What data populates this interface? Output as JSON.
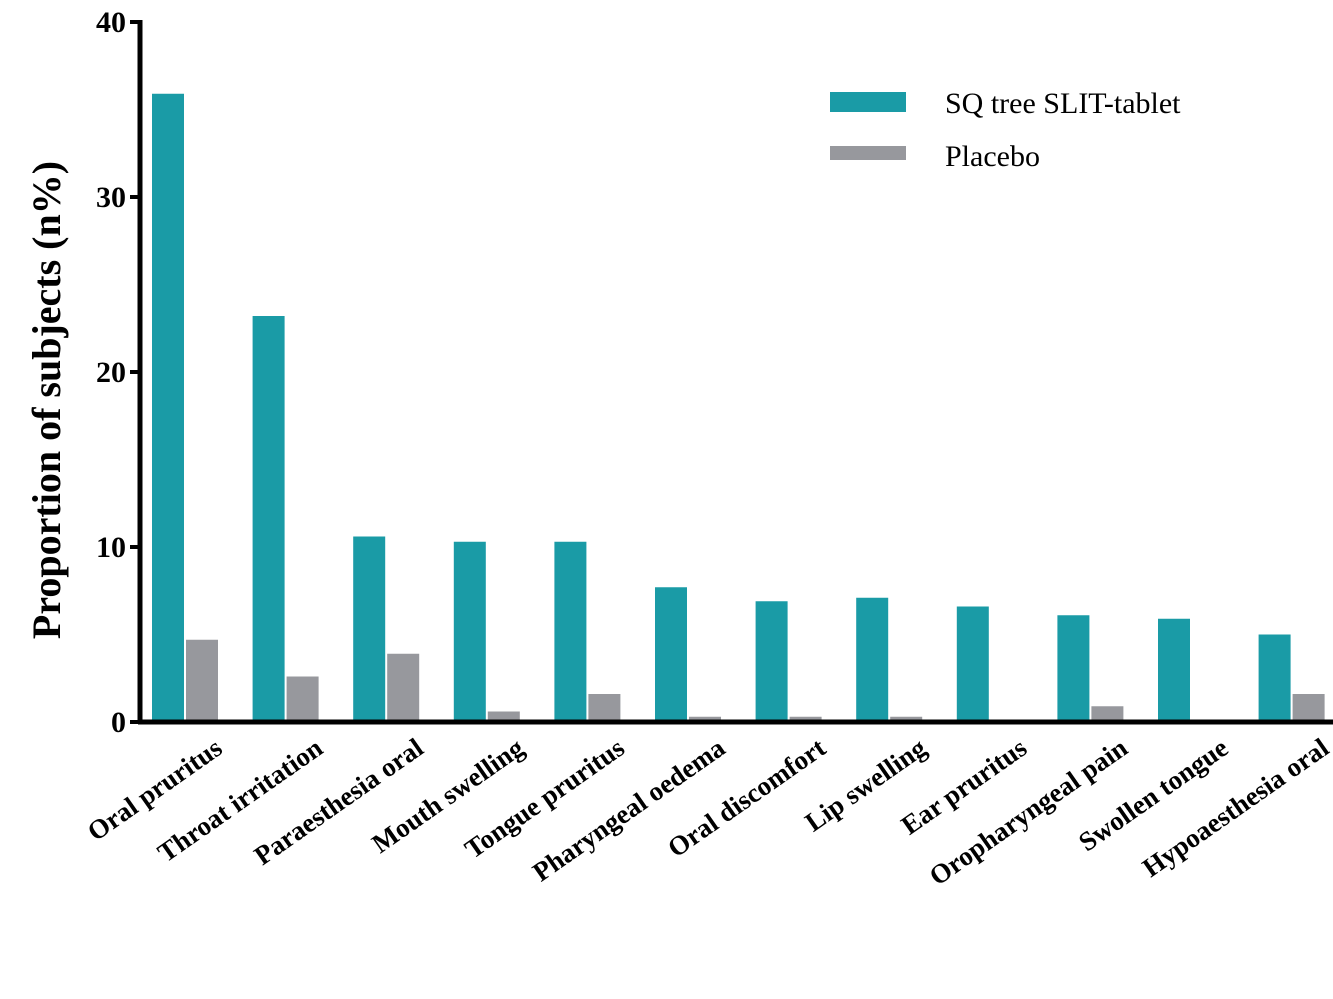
{
  "chart_data": {
    "type": "bar",
    "title": "",
    "xlabel": "",
    "ylabel": "Proportion of subjects (n%)",
    "ylim": [
      0,
      40
    ],
    "yticks": [
      0,
      10,
      20,
      30,
      40
    ],
    "grid": false,
    "legend_position": "top-right",
    "categories": [
      "Oral pruritus",
      "Throat irritation",
      "Paraesthesia oral",
      "Mouth swelling",
      "Tongue pruritus",
      "Pharyngeal oedema",
      "Oral discomfort",
      "Lip swelling",
      "Ear pruritus",
      "Oropharyngeal pain",
      "Swollen tongue",
      "Hypoaesthesia oral"
    ],
    "series": [
      {
        "name": "SQ tree SLIT-tablet",
        "color": "#1a9ba6",
        "values": [
          35.9,
          23.2,
          10.6,
          10.3,
          10.3,
          7.7,
          6.9,
          7.1,
          6.6,
          6.1,
          5.9,
          5.0
        ]
      },
      {
        "name": "Placebo",
        "color": "#97989d",
        "values": [
          4.7,
          2.6,
          3.9,
          0.6,
          1.6,
          0.3,
          0.3,
          0.3,
          0.0,
          0.9,
          0.0,
          1.6
        ]
      }
    ]
  }
}
